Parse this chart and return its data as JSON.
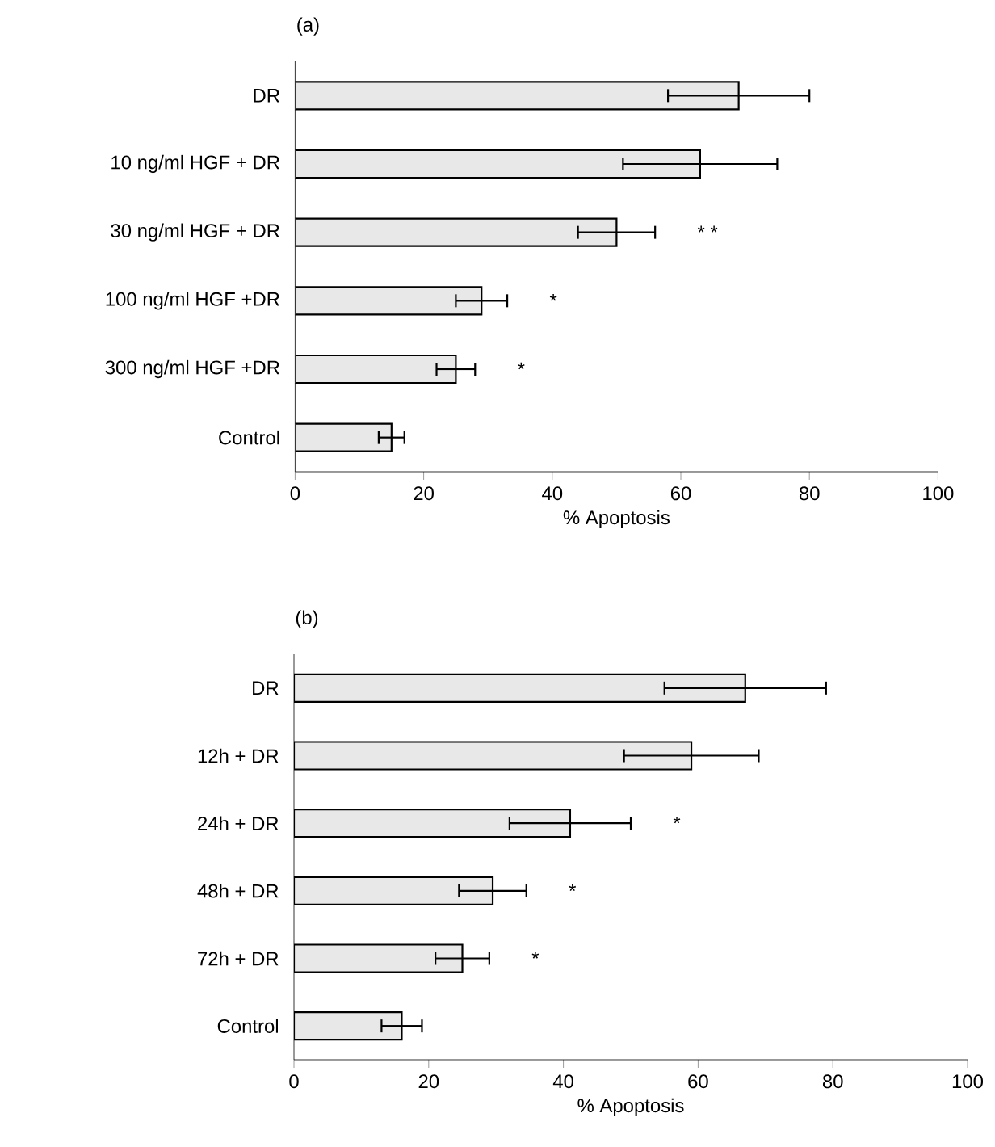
{
  "chart_data": [
    {
      "type": "bar",
      "orientation": "horizontal",
      "title": "(a)",
      "xlabel": "% Apoptosis",
      "categories": [
        "DR",
        "10 ng/ml HGF + DR",
        "30 ng/ml HGF + DR",
        "100 ng/ml HGF +DR",
        "300 ng/ml HGF +DR",
        "Control"
      ],
      "values": [
        69,
        63,
        50,
        29,
        25,
        15
      ],
      "errors": [
        11,
        12,
        6,
        4,
        3,
        2
      ],
      "color": "#e8e8e8",
      "xlim": [
        0,
        100
      ],
      "xticks": [
        0,
        20,
        40,
        60,
        80,
        100
      ],
      "annotations": [
        "* *",
        "*",
        "*"
      ]
    },
    {
      "type": "bar",
      "orientation": "horizontal",
      "title": "(b)",
      "xlabel": "% Apoptosis",
      "categories": [
        "DR",
        "12h + DR",
        "24h + DR",
        "48h + DR",
        "72h + DR",
        "Control"
      ],
      "values": [
        67,
        59,
        41,
        29.5,
        25,
        16
      ],
      "errors": [
        12,
        10,
        9,
        5,
        4,
        3
      ],
      "color": "#e8e8e8",
      "xlim": [
        0,
        100
      ],
      "xticks": [
        0,
        20,
        40,
        60,
        80,
        100
      ],
      "annotations": [
        "*",
        "*",
        "*"
      ]
    }
  ]
}
